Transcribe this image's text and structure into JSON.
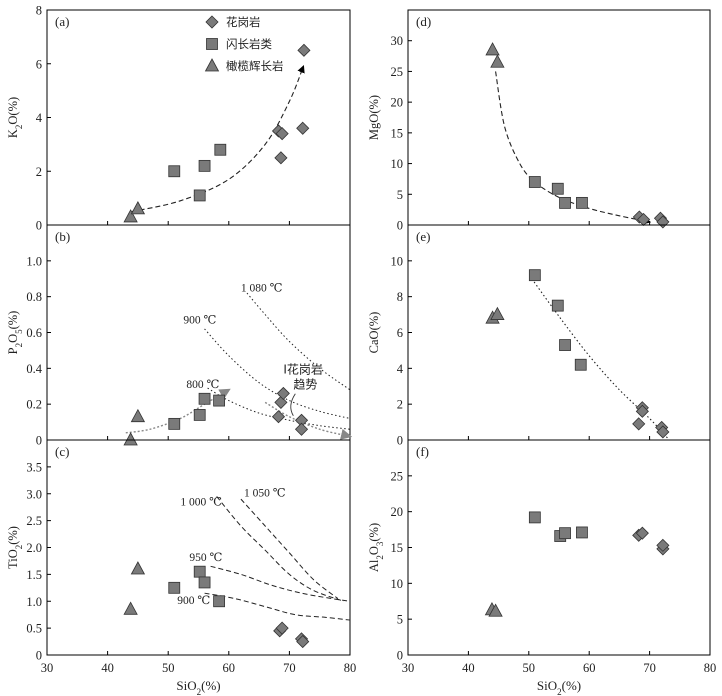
{
  "legend": {
    "items": [
      {
        "key": "granite",
        "label": "花岗岩",
        "marker": "diamond"
      },
      {
        "key": "diorite",
        "label": "闪长岩类",
        "marker": "square"
      },
      {
        "key": "gabbro",
        "label": "橄榄辉长岩",
        "marker": "triangle"
      }
    ]
  },
  "colors": {
    "marker_fill": "#7a7a7a",
    "marker_stroke": "#333333",
    "trend_arrow": "#888888",
    "axis": "#000000"
  },
  "chart_data": [
    {
      "id": "a",
      "panel_label": "(a)",
      "type": "scatter",
      "ylabel_parts": [
        "K",
        "2",
        "O(%)"
      ],
      "xlim": [
        30,
        80
      ],
      "ylim": [
        0,
        8
      ],
      "yticks": [
        0,
        2,
        4,
        6,
        8
      ],
      "series": [
        {
          "key": "granite",
          "points": [
            [
              68.2,
              3.5
            ],
            [
              68.8,
              3.4
            ],
            [
              68.6,
              2.5
            ],
            [
              72.2,
              3.6
            ],
            [
              72.4,
              6.5
            ]
          ]
        },
        {
          "key": "diorite",
          "points": [
            [
              51,
              2.0
            ],
            [
              55.2,
              1.1
            ],
            [
              56,
              2.2
            ],
            [
              58.6,
              2.8
            ]
          ]
        },
        {
          "key": "gabbro",
          "points": [
            [
              43.8,
              0.3
            ],
            [
              45,
              0.6
            ]
          ]
        }
      ],
      "trend": {
        "style": "dashed",
        "arrow": "black",
        "points": [
          [
            44,
            0.5
          ],
          [
            52,
            0.9
          ],
          [
            60,
            1.7
          ],
          [
            66,
            3.0
          ],
          [
            70,
            4.6
          ],
          [
            72.3,
            5.9
          ]
        ]
      }
    },
    {
      "id": "d",
      "panel_label": "(d)",
      "type": "scatter",
      "ylabel_parts": [
        "MgO(%)"
      ],
      "xlim": [
        30,
        80
      ],
      "ylim": [
        0,
        35
      ],
      "yticks": [
        0,
        5,
        10,
        15,
        20,
        25,
        30
      ],
      "series": [
        {
          "key": "granite",
          "points": [
            [
              68.3,
              1.3
            ],
            [
              69,
              0.9
            ],
            [
              71.8,
              1.1
            ],
            [
              72.2,
              0.5
            ]
          ]
        },
        {
          "key": "diorite",
          "points": [
            [
              51,
              7.0
            ],
            [
              54.8,
              5.9
            ],
            [
              56,
              3.6
            ],
            [
              58.8,
              3.6
            ]
          ]
        },
        {
          "key": "gabbro",
          "points": [
            [
              44,
              28.5
            ],
            [
              44.8,
              26.5
            ]
          ]
        }
      ],
      "trend": {
        "style": "dashed",
        "arrow": "black",
        "points": [
          [
            44.5,
            25
          ],
          [
            46,
            16
          ],
          [
            48.5,
            10
          ],
          [
            51,
            7
          ],
          [
            55,
            4.5
          ],
          [
            60,
            2.7
          ],
          [
            65,
            1.5
          ],
          [
            70,
            0.5
          ]
        ]
      }
    },
    {
      "id": "b",
      "panel_label": "(b)",
      "type": "scatter",
      "ylabel_parts": [
        "P",
        "2",
        "O",
        "5",
        "(%)"
      ],
      "xlim": [
        30,
        80
      ],
      "ylim": [
        0,
        1.2
      ],
      "yticks": [
        0,
        0.2,
        0.4,
        0.6,
        0.8,
        1.0
      ],
      "series": [
        {
          "key": "granite",
          "points": [
            [
              68.2,
              0.13
            ],
            [
              68.6,
              0.21
            ],
            [
              69,
              0.26
            ],
            [
              72,
              0.11
            ],
            [
              72,
              0.06
            ]
          ]
        },
        {
          "key": "diorite",
          "points": [
            [
              51,
              0.09
            ],
            [
              55.2,
              0.14
            ],
            [
              56,
              0.23
            ],
            [
              58.4,
              0.22
            ]
          ]
        },
        {
          "key": "gabbro",
          "points": [
            [
              43.8,
              0.0
            ],
            [
              45,
              0.13
            ]
          ]
        }
      ],
      "isotherms": [
        {
          "label": "1 080 ℃",
          "label_at": [
            62,
            0.83
          ],
          "points": [
            [
              63,
              0.82
            ],
            [
              66,
              0.7
            ],
            [
              70,
              0.55
            ],
            [
              75,
              0.4
            ],
            [
              80,
              0.28
            ]
          ]
        },
        {
          "label": "900 ℃",
          "label_at": [
            52.5,
            0.65
          ],
          "points": [
            [
              56,
              0.62
            ],
            [
              60,
              0.47
            ],
            [
              65,
              0.32
            ],
            [
              70,
              0.22
            ],
            [
              75,
              0.16
            ],
            [
              80,
              0.12
            ]
          ]
        },
        {
          "label": "800 ℃",
          "label_at": [
            53,
            0.29
          ],
          "points": [
            [
              56.5,
              0.29
            ],
            [
              60,
              0.22
            ],
            [
              65,
              0.15
            ],
            [
              70,
              0.11
            ],
            [
              75,
              0.08
            ],
            [
              80,
              0.06
            ]
          ]
        }
      ],
      "trends": [
        {
          "color": "gray",
          "points": [
            [
              43,
              0.04
            ],
            [
              47,
              0.06
            ],
            [
              52,
              0.12
            ],
            [
              56,
              0.2
            ],
            [
              60,
              0.28
            ]
          ]
        },
        {
          "color": "gray",
          "points": [
            [
              66,
              0.21
            ],
            [
              70,
              0.13
            ],
            [
              75,
              0.06
            ],
            [
              80,
              0.02
            ]
          ]
        }
      ],
      "annotation": {
        "lines": [
          "I花岗岩",
          "趋势"
        ],
        "at": [
          69,
          0.37
        ]
      }
    },
    {
      "id": "e",
      "panel_label": "(e)",
      "type": "scatter",
      "ylabel_parts": [
        "CaO(%)"
      ],
      "xlim": [
        30,
        80
      ],
      "ylim": [
        0,
        12
      ],
      "yticks": [
        0,
        2,
        4,
        6,
        8,
        10
      ],
      "series": [
        {
          "key": "granite",
          "points": [
            [
              68.8,
              1.8
            ],
            [
              68.8,
              1.6
            ],
            [
              68.2,
              0.9
            ],
            [
              72,
              0.7
            ],
            [
              72.2,
              0.45
            ]
          ]
        },
        {
          "key": "diorite",
          "points": [
            [
              51,
              9.2
            ],
            [
              54.8,
              7.5
            ],
            [
              56,
              5.3
            ],
            [
              58.6,
              4.2
            ]
          ]
        },
        {
          "key": "gabbro",
          "points": [
            [
              44,
              6.8
            ],
            [
              44.8,
              7.0
            ]
          ]
        }
      ],
      "trend": {
        "style": "dotted",
        "arrow": "none",
        "points": [
          [
            50.5,
            9.0
          ],
          [
            55,
            6.9
          ],
          [
            60,
            4.7
          ],
          [
            65,
            2.8
          ],
          [
            70,
            1.2
          ],
          [
            73,
            0.1
          ]
        ]
      }
    },
    {
      "id": "c",
      "panel_label": "(c)",
      "type": "scatter",
      "ylabel_parts": [
        "TiO",
        "2",
        "(%)"
      ],
      "xlim": [
        30,
        80
      ],
      "ylim": [
        0,
        4.0
      ],
      "yticks": [
        0,
        0.5,
        1.0,
        1.5,
        2.0,
        2.5,
        3.0,
        3.5
      ],
      "series": [
        {
          "key": "granite",
          "points": [
            [
              68.4,
              0.45
            ],
            [
              68.8,
              0.5
            ],
            [
              72,
              0.3
            ],
            [
              72.2,
              0.25
            ]
          ]
        },
        {
          "key": "diorite",
          "points": [
            [
              51,
              1.25
            ],
            [
              55.2,
              1.55
            ],
            [
              56,
              1.35
            ],
            [
              58.4,
              1.0
            ]
          ]
        },
        {
          "key": "gabbro",
          "points": [
            [
              43.8,
              0.85
            ],
            [
              45,
              1.6
            ]
          ]
        }
      ],
      "isotherms": [
        {
          "label": "1 050 ℃",
          "label_at": [
            62.5,
            2.95
          ],
          "points": [
            [
              62,
              2.9
            ],
            [
              66,
              2.4
            ],
            [
              70,
              1.9
            ],
            [
              74,
              1.4
            ],
            [
              78,
              1.05
            ]
          ]
        },
        {
          "label": "1 000 ℃",
          "label_at": [
            52,
            2.78
          ],
          "points": [
            [
              58,
              2.95
            ],
            [
              62,
              2.4
            ],
            [
              66,
              1.95
            ],
            [
              70,
              1.5
            ],
            [
              74,
              1.2
            ],
            [
              79,
              1.0
            ]
          ]
        },
        {
          "label": "950 ℃",
          "label_at": [
            53.5,
            1.75
          ],
          "points": [
            [
              57,
              1.65
            ],
            [
              62,
              1.5
            ],
            [
              67,
              1.3
            ],
            [
              72,
              1.15
            ],
            [
              77,
              1.05
            ],
            [
              80,
              1.0
            ]
          ]
        },
        {
          "label": "900 ℃",
          "label_at": [
            51.5,
            0.95
          ],
          "points": [
            [
              56,
              1.15
            ],
            [
              61,
              1.05
            ],
            [
              66,
              0.9
            ],
            [
              71,
              0.75
            ],
            [
              76,
              0.7
            ],
            [
              80,
              0.65
            ]
          ]
        }
      ]
    },
    {
      "id": "f",
      "panel_label": "(f)",
      "type": "scatter",
      "ylabel_parts": [
        "Al",
        "2",
        "O",
        "3",
        "(%)"
      ],
      "xlim": [
        30,
        80
      ],
      "ylim": [
        0,
        30
      ],
      "yticks": [
        0,
        5,
        10,
        15,
        20,
        25
      ],
      "series": [
        {
          "key": "granite",
          "points": [
            [
              68.2,
              16.7
            ],
            [
              68.8,
              17.0
            ],
            [
              72.2,
              14.8
            ],
            [
              72.2,
              15.3
            ]
          ]
        },
        {
          "key": "diorite",
          "points": [
            [
              51,
              19.2
            ],
            [
              55.2,
              16.6
            ],
            [
              56,
              17.0
            ],
            [
              58.8,
              17.1
            ]
          ]
        },
        {
          "key": "gabbro",
          "points": [
            [
              43.9,
              6.3
            ],
            [
              44.5,
              6.1
            ]
          ]
        }
      ]
    }
  ],
  "axes": {
    "xticks": [
      30,
      40,
      50,
      60,
      70,
      80
    ],
    "xlabel_parts": [
      "SiO",
      "2",
      "(%)"
    ]
  }
}
